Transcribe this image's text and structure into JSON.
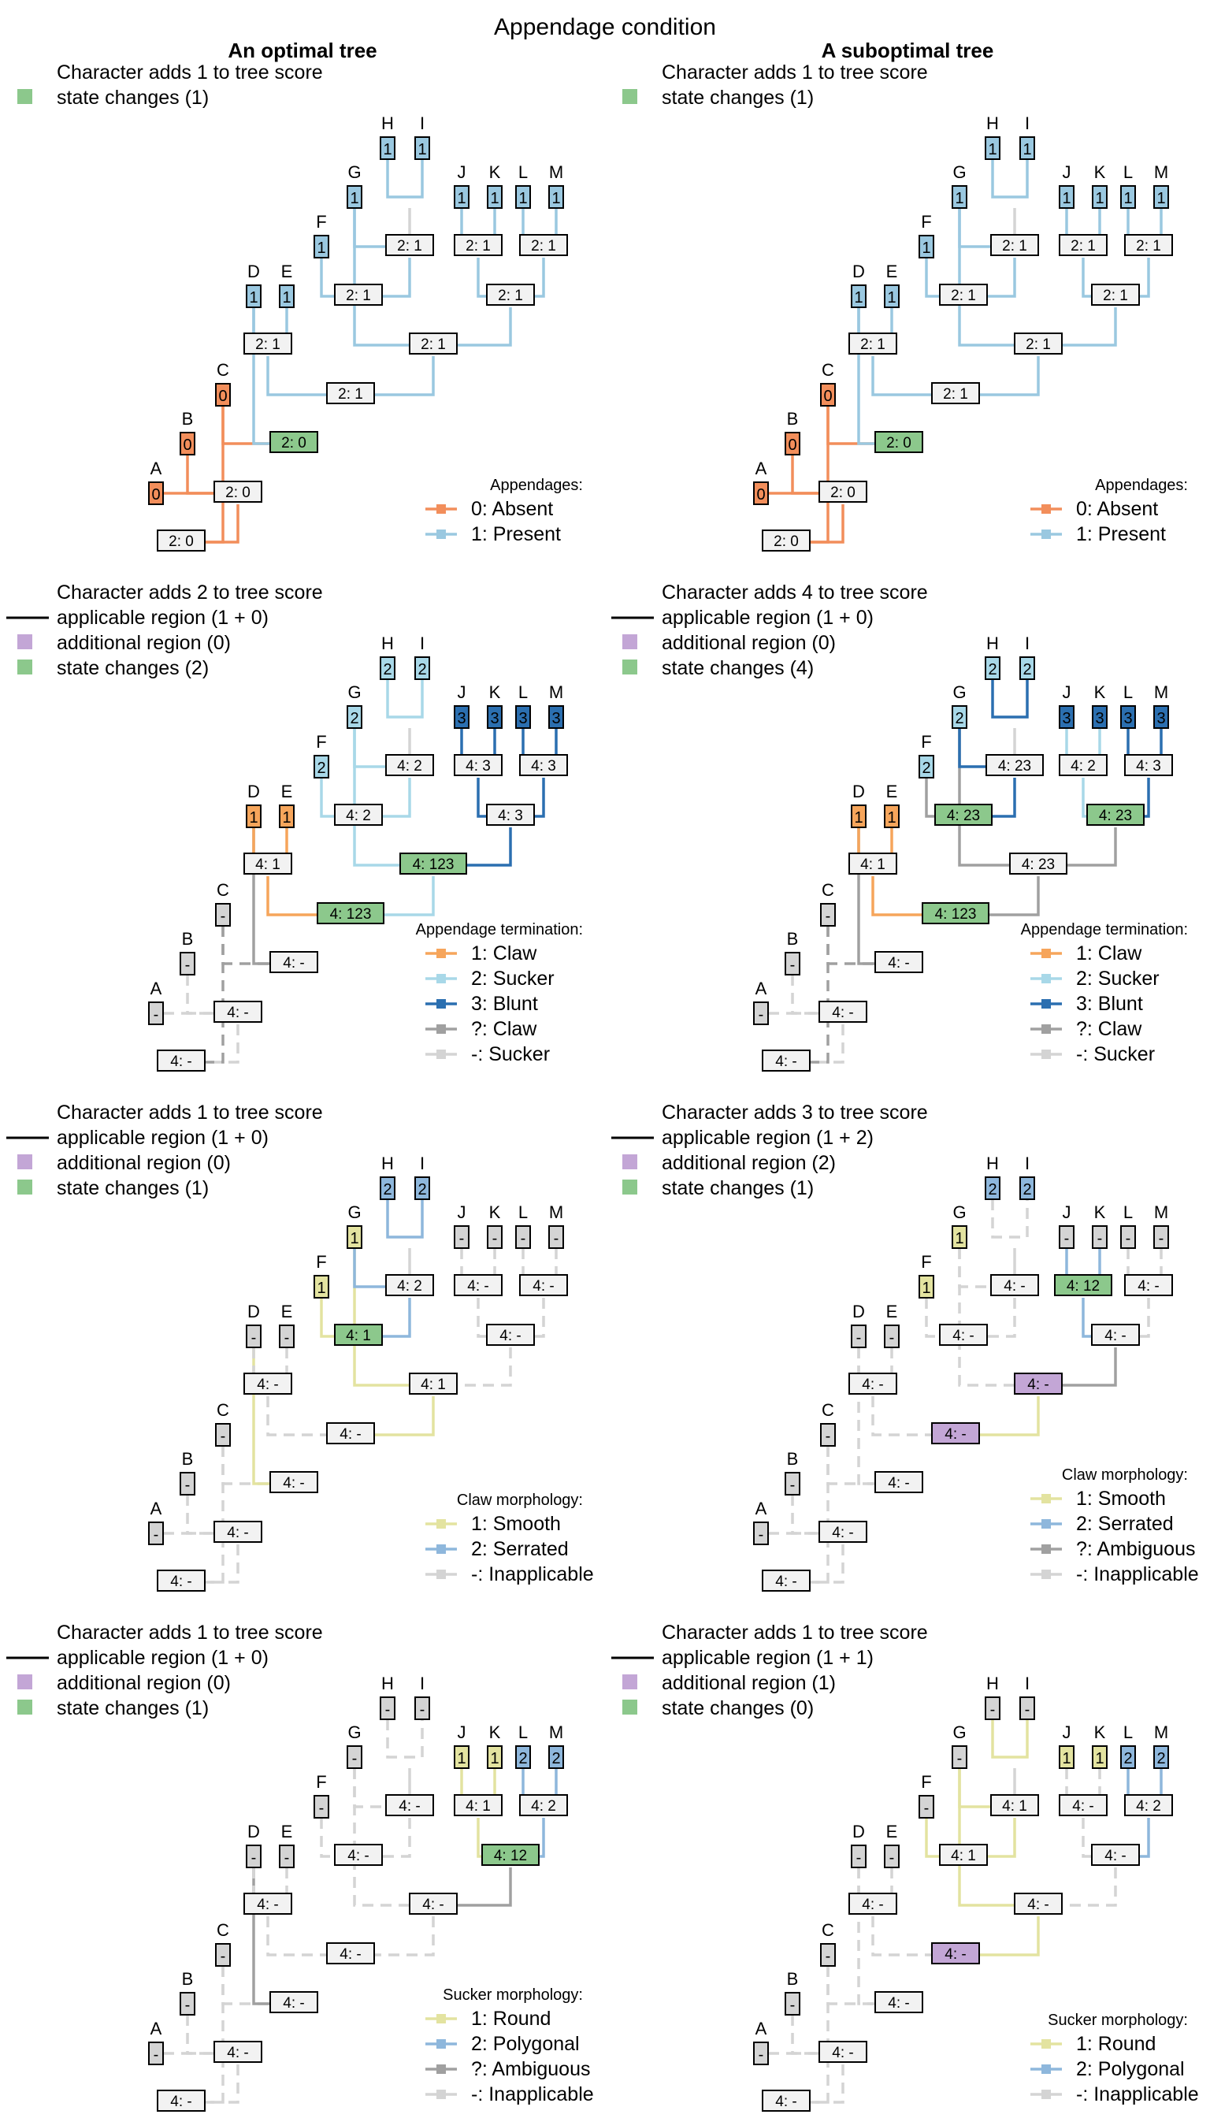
{
  "title": "Appendage condition",
  "columns": [
    "An optimal tree",
    "A suboptimal tree"
  ],
  "legend_key": {
    "adds_prefix": "Character adds ",
    "adds_suffix": " to tree score",
    "applicable": "applicable region",
    "additional": "additional region",
    "changes": "state changes"
  },
  "colors": {
    "absent": "#F28E5B",
    "present": "#9AC8E0",
    "claw": "#F6A55B",
    "sucker": "#A8D8E8",
    "blunt": "#2B6FB0",
    "ambiguous": "#A0A0A0",
    "inapplicable": "#D4D4D4",
    "smooth": "#E3E3A0",
    "serrated": "#8EB7DC",
    "round": "#E3E3A0",
    "polygonal": "#8EB7DC",
    "additional": "#C3A6D6",
    "changes": "#8CC88C",
    "box": "#F2F2F2"
  },
  "panels": [
    {
      "id": "p1",
      "score": "1",
      "info": [
        {
          "type": "changes",
          "label": "state changes (1)"
        }
      ],
      "legend_title": "Appendages:",
      "legend": [
        {
          "color": "absent",
          "label": "0: Absent"
        },
        {
          "color": "present",
          "label": "1: Present"
        }
      ],
      "tips": {
        "A": "0",
        "B": "0",
        "C": "0",
        "D": "1",
        "E": "1",
        "F": "1",
        "G": "1",
        "H": "1",
        "I": "1",
        "J": "1",
        "K": "1",
        "L": "1",
        "M": "1"
      },
      "tip_colors": {
        "A": "absent",
        "B": "absent",
        "C": "absent",
        "D": "present",
        "E": "present",
        "F": "present",
        "G": "present",
        "H": "present",
        "I": "present",
        "J": "present",
        "K": "present",
        "L": "present",
        "M": "present"
      },
      "nodes": {
        "root": "2: 0",
        "AB": "2: 0",
        "C": "2: 0",
        "D": "2: 1",
        "DE": "2: 1",
        "L2": "2: 1",
        "G": "2: 1",
        "HI": "2: 1",
        "R2": "2: 1",
        "JK": "2: 1",
        "LM": "2: 1"
      },
      "node_colors": {
        "root": "box",
        "AB": "box",
        "C": "changes",
        "D": "box",
        "DE": "box",
        "L2": "box",
        "G": "box",
        "HI": "box",
        "R2": "box",
        "JK": "box",
        "LM": "box"
      },
      "edge_colors": {
        "root": "absent",
        "AB": "absent",
        "C": "absent",
        "D": "present",
        "DE": "present",
        "L2": "present",
        "G": "present",
        "HI": "present",
        "R2": "present",
        "JK": "present",
        "LM": "present"
      }
    },
    {
      "id": "p2",
      "score": "1",
      "info": [
        {
          "type": "changes",
          "label": "state changes (1)"
        }
      ],
      "legend_title": "Appendages:",
      "legend": [
        {
          "color": "absent",
          "label": "0: Absent"
        },
        {
          "color": "present",
          "label": "1: Present"
        }
      ],
      "tips": {
        "A": "0",
        "B": "0",
        "C": "0",
        "D": "1",
        "E": "1",
        "F": "1",
        "G": "1",
        "H": "1",
        "I": "1",
        "J": "1",
        "K": "1",
        "L": "1",
        "M": "1"
      },
      "tip_colors": {
        "A": "absent",
        "B": "absent",
        "C": "absent",
        "D": "present",
        "E": "present",
        "F": "present",
        "G": "present",
        "H": "present",
        "I": "present",
        "J": "present",
        "K": "present",
        "L": "present",
        "M": "present"
      },
      "nodes": {
        "root": "2: 0",
        "AB": "2: 0",
        "C": "2: 0",
        "D": "2: 1",
        "DE": "2: 1",
        "L2": "2: 1",
        "G": "2: 1",
        "HI": "2: 1",
        "R2": "2: 1",
        "JK": "2: 1",
        "LM": "2: 1"
      },
      "node_colors": {
        "root": "box",
        "AB": "box",
        "C": "changes",
        "D": "box",
        "DE": "box",
        "L2": "box",
        "G": "box",
        "HI": "box",
        "R2": "box",
        "JK": "box",
        "LM": "box"
      },
      "edge_colors": {
        "root": "absent",
        "AB": "absent",
        "C": "absent",
        "D": "present",
        "DE": "present",
        "L2": "present",
        "G": "present",
        "HI": "present",
        "R2": "present",
        "JK": "present",
        "LM": "present"
      }
    },
    {
      "id": "p3",
      "score": "2",
      "info": [
        {
          "type": "applicable",
          "label": "applicable region (1 + 0)"
        },
        {
          "type": "additional",
          "label": "additional region (0)"
        },
        {
          "type": "changes",
          "label": "state changes (2)"
        }
      ],
      "legend_title": "Appendage termination:",
      "legend": [
        {
          "color": "claw",
          "label": "1: Claw"
        },
        {
          "color": "sucker",
          "label": "2: Sucker"
        },
        {
          "color": "blunt",
          "label": "3: Blunt"
        },
        {
          "color": "ambiguous",
          "label": "?: Claw"
        },
        {
          "color": "inapplicable",
          "label": "-: Sucker"
        }
      ],
      "tips": {
        "A": "-",
        "B": "-",
        "C": "-",
        "D": "1",
        "E": "1",
        "F": "2",
        "G": "2",
        "H": "2",
        "I": "2",
        "J": "3",
        "K": "3",
        "L": "3",
        "M": "3"
      },
      "tip_colors": {
        "A": "inapplicable",
        "B": "inapplicable",
        "C": "inapplicable",
        "D": "claw",
        "E": "claw",
        "F": "sucker",
        "G": "sucker",
        "H": "sucker",
        "I": "sucker",
        "J": "blunt",
        "K": "blunt",
        "L": "blunt",
        "M": "blunt"
      },
      "nodes": {
        "root": "4: -",
        "AB": "4: -",
        "C": "4: -",
        "D": "4: 123",
        "DE": "4: 1",
        "L2": "4: 123",
        "G": "4: 2",
        "HI": "4: 2",
        "R2": "4: 3",
        "JK": "4: 3",
        "LM": "4: 3"
      },
      "node_colors": {
        "root": "box",
        "AB": "box",
        "C": "box",
        "D": "changes",
        "DE": "box",
        "L2": "changes",
        "G": "box",
        "HI": "box",
        "R2": "box",
        "JK": "box",
        "LM": "box"
      },
      "edge_colors": {
        "root": "inapplicable",
        "AB": "inapplicable",
        "C": "ambiguous",
        "D": "ambiguous",
        "DE": "claw",
        "L2": "sucker",
        "G": "sucker",
        "HI": "sucker",
        "R2": "blunt",
        "JK": "blunt",
        "LM": "blunt"
      },
      "edge_styles": {
        "root": "dashed",
        "AB": "dashed",
        "C": "dashed"
      }
    },
    {
      "id": "p4",
      "score": "4",
      "info": [
        {
          "type": "applicable",
          "label": "applicable region (1 + 0)"
        },
        {
          "type": "additional",
          "label": "additional region (0)"
        },
        {
          "type": "changes",
          "label": "state changes (4)"
        }
      ],
      "legend_title": "Appendage termination:",
      "legend": [
        {
          "color": "claw",
          "label": "1: Claw"
        },
        {
          "color": "sucker",
          "label": "2: Sucker"
        },
        {
          "color": "blunt",
          "label": "3: Blunt"
        },
        {
          "color": "ambiguous",
          "label": "?: Claw"
        },
        {
          "color": "inapplicable",
          "label": "-: Sucker"
        }
      ],
      "tips": {
        "A": "-",
        "B": "-",
        "C": "-",
        "D": "1",
        "E": "1",
        "F": "2",
        "G": "2",
        "H": "2",
        "I": "2",
        "J": "3",
        "K": "3",
        "L": "3",
        "M": "3"
      },
      "tip_colors": {
        "A": "inapplicable",
        "B": "inapplicable",
        "C": "inapplicable",
        "D": "claw",
        "E": "claw",
        "F": "sucker",
        "G": "sucker",
        "H": "sucker",
        "I": "sucker",
        "J": "blunt",
        "K": "blunt",
        "L": "blunt",
        "M": "blunt"
      },
      "nodes": {
        "root": "4: -",
        "AB": "4: -",
        "C": "4: -",
        "D": "4: 123",
        "DE": "4: 1",
        "L2": "4: 23",
        "G": "4: 23",
        "HI": "4: 23",
        "R2": "4: 23",
        "JK": "4: 2",
        "LM": "4: 3"
      },
      "node_colors": {
        "root": "box",
        "AB": "box",
        "C": "box",
        "D": "changes",
        "DE": "box",
        "L2": "box",
        "G": "changes",
        "HI": "box",
        "R2": "changes",
        "JK": "box",
        "LM": "box"
      },
      "edge_colors": {
        "root": "inapplicable",
        "AB": "inapplicable",
        "C": "ambiguous",
        "D": "ambiguous",
        "DE": "claw",
        "L2": "ambiguous",
        "G": "ambiguous",
        "HI": "blunt",
        "R2": "ambiguous",
        "JK": "sucker",
        "LM": "blunt"
      },
      "edge_styles": {
        "root": "dashed",
        "AB": "dashed",
        "C": "dashed"
      }
    },
    {
      "id": "p5",
      "score": "1",
      "info": [
        {
          "type": "applicable",
          "label": "applicable region (1 + 0)"
        },
        {
          "type": "additional",
          "label": "additional region (0)"
        },
        {
          "type": "changes",
          "label": "state changes (1)"
        }
      ],
      "legend_title": "Claw morphology:",
      "legend": [
        {
          "color": "smooth",
          "label": "1: Smooth"
        },
        {
          "color": "serrated",
          "label": "2: Serrated"
        },
        {
          "color": "inapplicable",
          "label": "-: Inapplicable"
        }
      ],
      "tips": {
        "A": "-",
        "B": "-",
        "C": "-",
        "D": "-",
        "E": "-",
        "F": "1",
        "G": "1",
        "H": "2",
        "I": "2",
        "J": "-",
        "K": "-",
        "L": "-",
        "M": "-"
      },
      "tip_colors": {
        "A": "inapplicable",
        "B": "inapplicable",
        "C": "inapplicable",
        "D": "inapplicable",
        "E": "inapplicable",
        "F": "smooth",
        "G": "smooth",
        "H": "serrated",
        "I": "serrated",
        "J": "inapplicable",
        "K": "inapplicable",
        "L": "inapplicable",
        "M": "inapplicable"
      },
      "nodes": {
        "root": "4: -",
        "AB": "4: -",
        "C": "4: -",
        "D": "4: -",
        "DE": "4: -",
        "L2": "4: 1",
        "G": "4: 1",
        "HI": "4: 2",
        "R2": "4: -",
        "JK": "4: -",
        "LM": "4: -"
      },
      "node_colors": {
        "root": "box",
        "AB": "box",
        "C": "box",
        "D": "box",
        "DE": "box",
        "L2": "box",
        "G": "changes",
        "HI": "box",
        "R2": "box",
        "JK": "box",
        "LM": "box"
      },
      "edge_colors": {
        "root": "inapplicable",
        "AB": "inapplicable",
        "C": "inapplicable",
        "D": "smooth",
        "DE": "inapplicable",
        "L2": "smooth",
        "G": "smooth",
        "HI": "serrated",
        "R2": "inapplicable",
        "JK": "inapplicable",
        "LM": "inapplicable"
      },
      "edge_styles": {
        "root": "dashed",
        "AB": "dashed",
        "C": "dashed",
        "DE": "dashed",
        "R2": "dashed",
        "JK": "dashed",
        "LM": "dashed"
      }
    },
    {
      "id": "p6",
      "score": "3",
      "info": [
        {
          "type": "applicable",
          "label": "applicable region (1 + 2)"
        },
        {
          "type": "additional",
          "label": "additional region (2)"
        },
        {
          "type": "changes",
          "label": "state changes (1)"
        }
      ],
      "legend_title": "Claw morphology:",
      "legend": [
        {
          "color": "smooth",
          "label": "1: Smooth"
        },
        {
          "color": "serrated",
          "label": "2: Serrated"
        },
        {
          "color": "ambiguous",
          "label": "?: Ambiguous"
        },
        {
          "color": "inapplicable",
          "label": "-: Inapplicable"
        }
      ],
      "tips": {
        "A": "-",
        "B": "-",
        "C": "-",
        "D": "-",
        "E": "-",
        "F": "1",
        "G": "1",
        "H": "2",
        "I": "2",
        "J": "-",
        "K": "-",
        "L": "-",
        "M": "-"
      },
      "tip_colors": {
        "A": "inapplicable",
        "B": "inapplicable",
        "C": "inapplicable",
        "D": "inapplicable",
        "E": "inapplicable",
        "F": "smooth",
        "G": "smooth",
        "H": "serrated",
        "I": "serrated",
        "J": "inapplicable",
        "K": "inapplicable",
        "L": "inapplicable",
        "M": "inapplicable"
      },
      "nodes": {
        "root": "4: -",
        "AB": "4: -",
        "C": "4: -",
        "D": "4: -",
        "DE": "4: -",
        "L2": "4: -",
        "G": "4: -",
        "HI": "4: -",
        "R2": "4: -",
        "JK": "4: 12",
        "LM": "4: -"
      },
      "node_colors": {
        "root": "box",
        "AB": "box",
        "C": "box",
        "D": "additional",
        "DE": "box",
        "L2": "additional",
        "G": "box",
        "HI": "box",
        "R2": "box",
        "JK": "changes",
        "LM": "box"
      },
      "edge_colors": {
        "root": "inapplicable",
        "AB": "inapplicable",
        "C": "inapplicable",
        "D": "inapplicable",
        "DE": "inapplicable",
        "L2": "smooth",
        "G": "inapplicable",
        "HI": "inapplicable",
        "R2": "ambiguous",
        "JK": "serrated",
        "LM": "inapplicable"
      },
      "edge_styles": {
        "root": "dashed",
        "AB": "dashed",
        "C": "dashed",
        "D": "dashed",
        "DE": "dashed",
        "G": "dashed",
        "HI": "dashed",
        "LM": "dashed"
      }
    },
    {
      "id": "p7",
      "score": "1",
      "info": [
        {
          "type": "applicable",
          "label": "applicable region (1 + 0)"
        },
        {
          "type": "additional",
          "label": "additional region (0)"
        },
        {
          "type": "changes",
          "label": "state changes (1)"
        }
      ],
      "legend_title": "Sucker morphology:",
      "legend": [
        {
          "color": "round",
          "label": "1: Round"
        },
        {
          "color": "polygonal",
          "label": "2: Polygonal"
        },
        {
          "color": "ambiguous",
          "label": "?: Ambiguous"
        },
        {
          "color": "inapplicable",
          "label": "-: Inapplicable"
        }
      ],
      "tips": {
        "A": "-",
        "B": "-",
        "C": "-",
        "D": "-",
        "E": "-",
        "F": "-",
        "G": "-",
        "H": "-",
        "I": "-",
        "J": "1",
        "K": "1",
        "L": "2",
        "M": "2"
      },
      "tip_colors": {
        "A": "inapplicable",
        "B": "inapplicable",
        "C": "inapplicable",
        "D": "inapplicable",
        "E": "inapplicable",
        "F": "inapplicable",
        "G": "inapplicable",
        "H": "inapplicable",
        "I": "inapplicable",
        "J": "round",
        "K": "round",
        "L": "polygonal",
        "M": "polygonal"
      },
      "nodes": {
        "root": "4: -",
        "AB": "4: -",
        "C": "4: -",
        "D": "4: -",
        "DE": "4: -",
        "L2": "4: -",
        "G": "4: -",
        "HI": "4: -",
        "R2": "4: 12",
        "JK": "4: 1",
        "LM": "4: 2"
      },
      "node_colors": {
        "root": "box",
        "AB": "box",
        "C": "box",
        "D": "box",
        "DE": "box",
        "L2": "box",
        "G": "box",
        "HI": "box",
        "R2": "changes",
        "JK": "box",
        "LM": "box"
      },
      "edge_colors": {
        "root": "inapplicable",
        "AB": "inapplicable",
        "C": "inapplicable",
        "D": "ambiguous",
        "DE": "inapplicable",
        "L2": "inapplicable",
        "G": "inapplicable",
        "HI": "inapplicable",
        "R2": "ambiguous",
        "JK": "round",
        "LM": "polygonal"
      },
      "edge_styles": {
        "root": "dashed",
        "AB": "dashed",
        "C": "dashed",
        "DE": "dashed",
        "L2": "dashed",
        "G": "dashed",
        "HI": "dashed"
      }
    },
    {
      "id": "p8",
      "score": "1",
      "info": [
        {
          "type": "applicable",
          "label": "applicable region (1 + 1)"
        },
        {
          "type": "additional",
          "label": "additional region (1)"
        },
        {
          "type": "changes",
          "label": "state changes (0)"
        }
      ],
      "legend_title": "Sucker morphology:",
      "legend": [
        {
          "color": "round",
          "label": "1: Round"
        },
        {
          "color": "polygonal",
          "label": "2: Polygonal"
        },
        {
          "color": "inapplicable",
          "label": "-: Inapplicable"
        }
      ],
      "tips": {
        "A": "-",
        "B": "-",
        "C": "-",
        "D": "-",
        "E": "-",
        "F": "-",
        "G": "-",
        "H": "-",
        "I": "-",
        "J": "1",
        "K": "1",
        "L": "2",
        "M": "2"
      },
      "tip_colors": {
        "A": "inapplicable",
        "B": "inapplicable",
        "C": "inapplicable",
        "D": "inapplicable",
        "E": "inapplicable",
        "F": "inapplicable",
        "G": "inapplicable",
        "H": "inapplicable",
        "I": "inapplicable",
        "J": "round",
        "K": "round",
        "L": "polygonal",
        "M": "polygonal"
      },
      "nodes": {
        "root": "4: -",
        "AB": "4: -",
        "C": "4: -",
        "D": "4: -",
        "DE": "4: -",
        "L2": "4: -",
        "G": "4: 1",
        "HI": "4: 1",
        "R2": "4: -",
        "JK": "4: -",
        "LM": "4: 2"
      },
      "node_colors": {
        "root": "box",
        "AB": "box",
        "C": "box",
        "D": "additional",
        "DE": "box",
        "L2": "box",
        "G": "box",
        "HI": "box",
        "R2": "box",
        "JK": "box",
        "LM": "box"
      },
      "edge_colors": {
        "root": "inapplicable",
        "AB": "inapplicable",
        "C": "inapplicable",
        "D": "inapplicable",
        "DE": "inapplicable",
        "L2": "round",
        "G": "round",
        "HI": "round",
        "R2": "inapplicable",
        "JK": "inapplicable",
        "LM": "polygonal"
      },
      "edge_styles": {
        "root": "dashed",
        "AB": "dashed",
        "C": "dashed",
        "D": "dashed",
        "DE": "dashed",
        "R2": "dashed",
        "JK": "dashed"
      }
    }
  ]
}
